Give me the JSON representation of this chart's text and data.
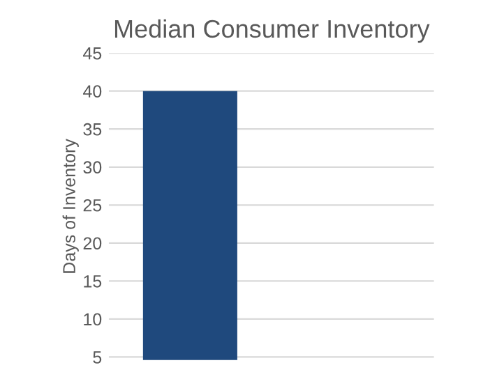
{
  "chart_data": {
    "type": "bar",
    "title": "Median Consumer Inventory",
    "ylabel": "Days of Inventory",
    "categories": [
      null,
      null
    ],
    "values": [
      40,
      null
    ],
    "color": "#1f497d",
    "ylim": [
      4.6,
      45
    ],
    "yticks": [
      5,
      10,
      15,
      20,
      25,
      30,
      35,
      40,
      45
    ],
    "grid": "y",
    "legend": false
  }
}
